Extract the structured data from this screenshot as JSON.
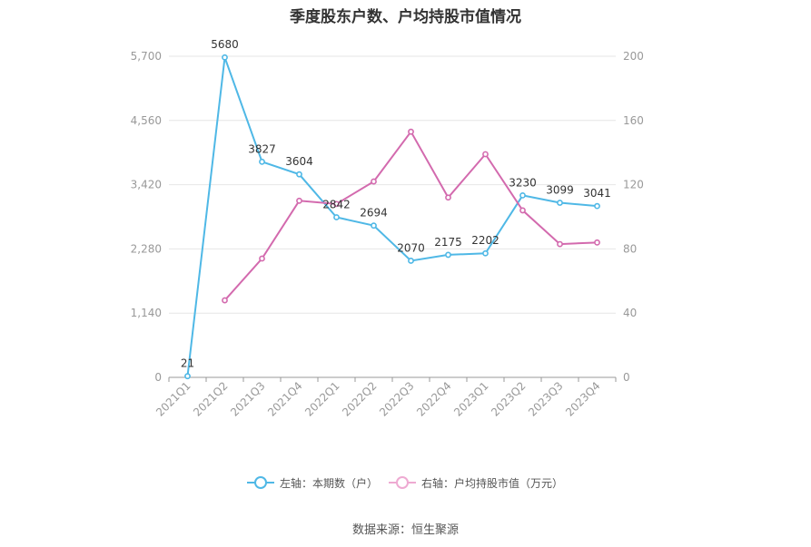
{
  "title": "季度股东户数、户均持股市值情况",
  "source": "数据来源：恒生聚源",
  "colors": {
    "left_series": "#4fb8e6",
    "right_series": "#d36aae",
    "grid": "#e6e6e6",
    "axis": "#999999",
    "label": "#333333"
  },
  "chart_data": {
    "type": "line",
    "categories": [
      "2021Q1",
      "2021Q2",
      "2021Q3",
      "2021Q4",
      "2022Q1",
      "2022Q2",
      "2022Q3",
      "2022Q4",
      "2023Q1",
      "2023Q2",
      "2023Q3",
      "2023Q4"
    ],
    "left_axis": {
      "ylim": [
        0,
        5700
      ],
      "ticks": [
        0,
        1140,
        2280,
        3420,
        4560,
        5700
      ],
      "tick_labels": [
        "0",
        "1,140",
        "2,280",
        "3,420",
        "4,560",
        "5,700"
      ]
    },
    "right_axis": {
      "ylim": [
        0,
        200
      ],
      "ticks": [
        0,
        40,
        80,
        120,
        160,
        200
      ],
      "tick_labels": [
        "0",
        "40",
        "80",
        "120",
        "160",
        "200"
      ]
    },
    "series": [
      {
        "name": "左轴：本期数（户）",
        "axis": "left",
        "values": [
          21,
          5680,
          3827,
          3604,
          2842,
          2694,
          2070,
          2175,
          2202,
          3230,
          3099,
          3041
        ],
        "show_labels": true
      },
      {
        "name": "右轴：户均持股市值（万元）",
        "axis": "right",
        "values": [
          null,
          48,
          74,
          110,
          108,
          122,
          153,
          112,
          139,
          104,
          83,
          84
        ],
        "show_labels": false
      }
    ],
    "grid": true,
    "legend_position": "bottom"
  }
}
